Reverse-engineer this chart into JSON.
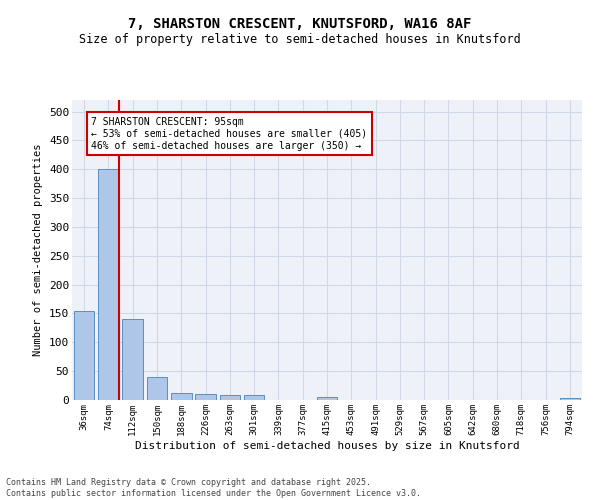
{
  "title1": "7, SHARSTON CRESCENT, KNUTSFORD, WA16 8AF",
  "title2": "Size of property relative to semi-detached houses in Knutsford",
  "xlabel": "Distribution of semi-detached houses by size in Knutsford",
  "ylabel": "Number of semi-detached properties",
  "bin_labels": [
    "36sqm",
    "74sqm",
    "112sqm",
    "150sqm",
    "188sqm",
    "226sqm",
    "263sqm",
    "301sqm",
    "339sqm",
    "377sqm",
    "415sqm",
    "453sqm",
    "491sqm",
    "529sqm",
    "567sqm",
    "605sqm",
    "642sqm",
    "680sqm",
    "718sqm",
    "756sqm",
    "794sqm"
  ],
  "bar_values": [
    155,
    400,
    140,
    40,
    12,
    10,
    8,
    8,
    0,
    0,
    6,
    0,
    0,
    0,
    0,
    0,
    0,
    0,
    0,
    0,
    3
  ],
  "bar_color": "#aec6e8",
  "bar_edgecolor": "#5a8fc2",
  "vline_color": "#cc0000",
  "annotation_text": "7 SHARSTON CRESCENT: 95sqm\n← 53% of semi-detached houses are smaller (405)\n46% of semi-detached houses are larger (350) →",
  "annotation_box_edgecolor": "#cc0000",
  "ylim": [
    0,
    520
  ],
  "yticks": [
    0,
    50,
    100,
    150,
    200,
    250,
    300,
    350,
    400,
    450,
    500
  ],
  "grid_color": "#d0d8e8",
  "bg_color": "#eef2f8",
  "footer_text": "Contains HM Land Registry data © Crown copyright and database right 2025.\nContains public sector information licensed under the Open Government Licence v3.0.",
  "title1_fontsize": 10,
  "title2_fontsize": 8.5
}
